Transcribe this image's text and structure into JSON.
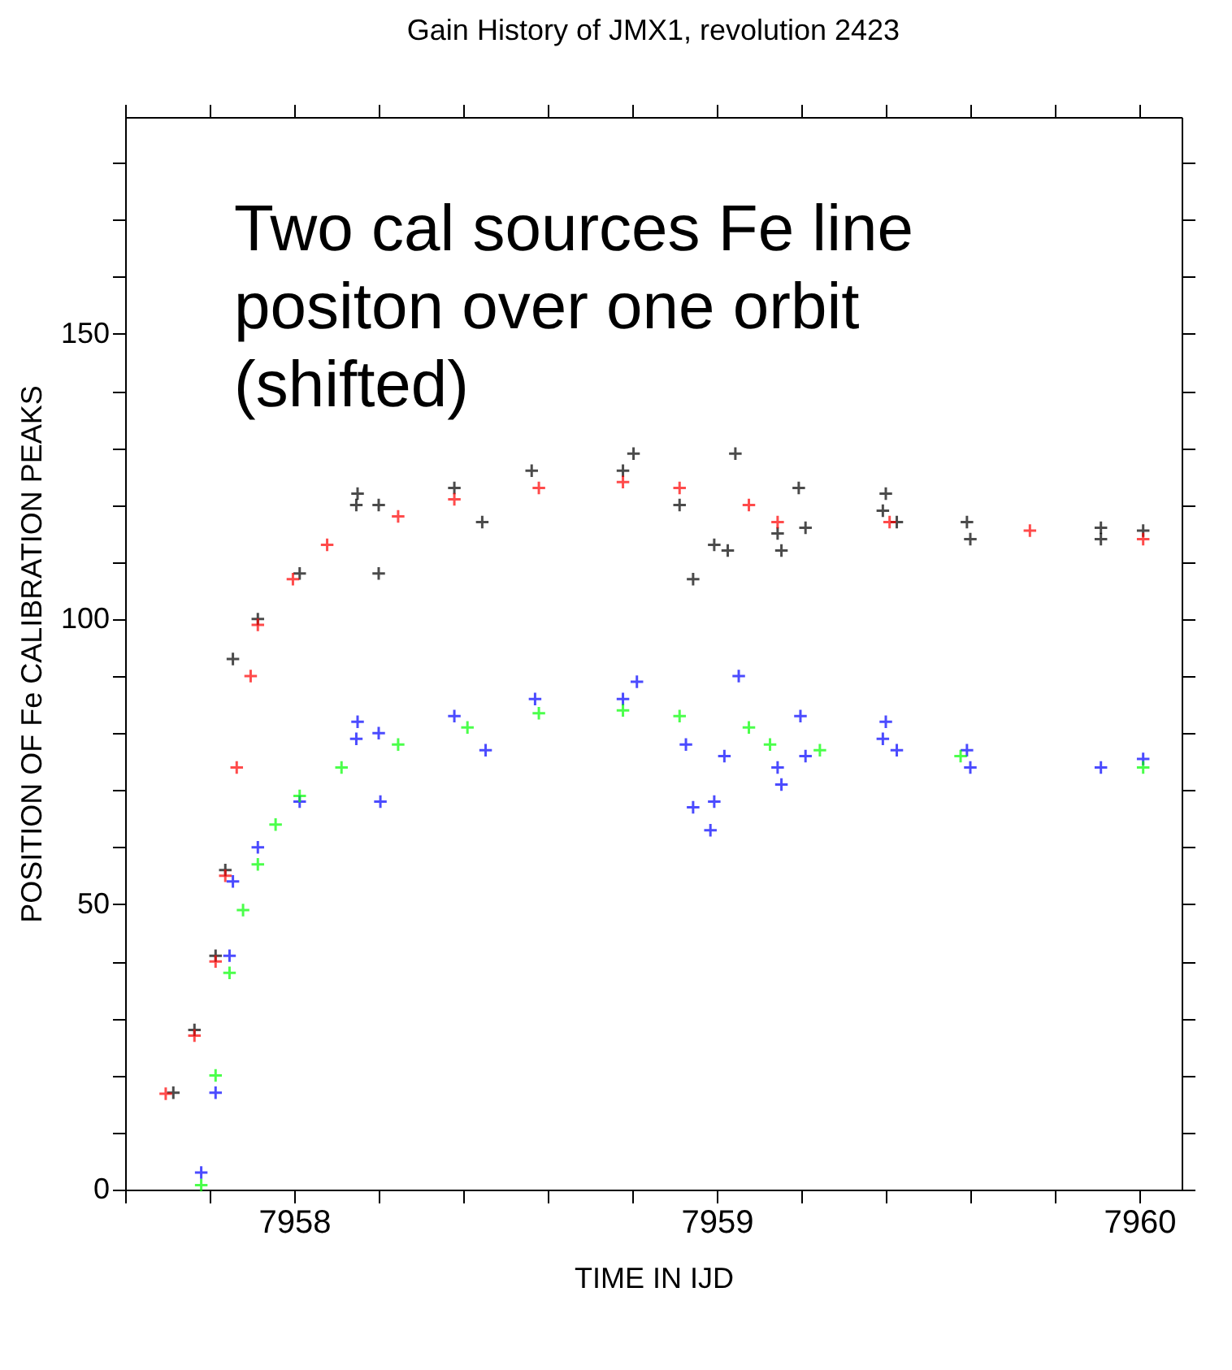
{
  "chart_data": {
    "type": "scatter",
    "title": "Gain History of JMX1, revolution 2423",
    "xlabel": "TIME IN IJD",
    "ylabel": "POSITION OF Fe CALIBRATION PEAKS",
    "annotations": [
      "Two cal sources Fe line positon over one orbit (shifted)"
    ],
    "xlim": [
      7957.6,
      7960.1
    ],
    "xticks": [
      {
        "value": 7957.6,
        "label": null
      },
      {
        "value": 7957.8,
        "label": null
      },
      7958,
      {
        "value": 7958.2,
        "label": null
      },
      {
        "value": 7958.4,
        "label": null
      },
      {
        "value": 7958.6,
        "label": null
      },
      {
        "value": 7958.8,
        "label": null
      },
      7959,
      {
        "value": 7959.2,
        "label": null
      },
      {
        "value": 7959.4,
        "label": null
      },
      {
        "value": 7959.6,
        "label": null
      },
      {
        "value": 7959.8,
        "label": null
      },
      7960
    ],
    "ylim": [
      0,
      188
    ],
    "yticks": [
      0,
      {
        "value": 10,
        "label": null
      },
      {
        "value": 20,
        "label": null
      },
      {
        "value": 30,
        "label": null
      },
      {
        "value": 40,
        "label": null
      },
      50,
      {
        "value": 60,
        "label": null
      },
      {
        "value": 70,
        "label": null
      },
      {
        "value": 80,
        "label": null
      },
      {
        "value": 90,
        "label": null
      },
      100,
      {
        "value": 110,
        "label": null
      },
      {
        "value": 120,
        "label": null
      },
      {
        "value": 130,
        "label": null
      },
      {
        "value": 140,
        "label": null
      },
      150,
      {
        "value": 160,
        "label": null
      },
      {
        "value": 170,
        "label": null
      },
      {
        "value": 180,
        "label": null
      }
    ],
    "grid": false,
    "marker": "cross",
    "series": [
      {
        "color": "#000000",
        "x": [
          7957.714,
          7957.764,
          7957.814,
          7957.837,
          7957.855,
          7957.914,
          7958.013,
          7958.147,
          7958.15,
          7958.2,
          7958.2,
          7958.379,
          7958.445,
          7958.562,
          7958.778,
          7958.803,
          7958.912,
          7958.944,
          7958.994,
          7959.026,
          7959.044,
          7959.144,
          7959.153,
          7959.194,
          7959.21,
          7959.393,
          7959.4,
          7959.426,
          7959.592,
          7959.6,
          7959.909,
          7959.909,
          7960.009
        ],
        "values": [
          17,
          28,
          41,
          56,
          93,
          100,
          108,
          120,
          122,
          120,
          108,
          123,
          117,
          126,
          126,
          129,
          120,
          107,
          113,
          112,
          129,
          115,
          112,
          123,
          116,
          119,
          122,
          117,
          117,
          114,
          114,
          116,
          115.5
        ]
      },
      {
        "color": "#ff0000",
        "x": [
          7957.696,
          7957.764,
          7957.814,
          7957.837,
          7957.864,
          7957.897,
          7957.914,
          7957.997,
          7958.078,
          7958.246,
          7958.379,
          7958.579,
          7958.778,
          7958.912,
          7959.076,
          7959.144,
          7959.409,
          7959.741,
          7960.009
        ],
        "values": [
          16.8,
          27,
          40,
          55,
          74,
          90,
          99,
          107,
          113,
          118,
          121,
          123,
          124,
          123,
          120,
          117,
          117,
          115.5,
          114
        ]
      },
      {
        "color": "#0000ff",
        "x": [
          7957.78,
          7957.814,
          7957.847,
          7957.855,
          7957.914,
          7958.013,
          7958.147,
          7958.15,
          7958.2,
          7958.204,
          7958.379,
          7958.453,
          7958.57,
          7958.778,
          7958.811,
          7958.927,
          7958.944,
          7958.985,
          7958.994,
          7959.018,
          7959.052,
          7959.144,
          7959.153,
          7959.198,
          7959.21,
          7959.393,
          7959.4,
          7959.426,
          7959.592,
          7959.6,
          7959.909,
          7960.009
        ],
        "values": [
          3,
          17,
          41,
          54,
          60,
          68,
          79,
          82,
          80,
          68,
          83,
          77,
          86,
          86,
          89,
          78,
          67,
          63,
          68,
          76,
          90,
          74,
          71,
          83,
          76,
          79,
          82,
          77,
          77,
          74,
          74,
          75.5
        ]
      },
      {
        "color": "#00ff00",
        "x": [
          7957.78,
          7957.814,
          7957.847,
          7957.879,
          7957.914,
          7957.956,
          7958.013,
          7958.112,
          7958.246,
          7958.41,
          7958.579,
          7958.778,
          7958.912,
          7959.076,
          7959.126,
          7959.244,
          7959.577,
          7960.009
        ],
        "values": [
          0.8,
          20,
          38,
          49,
          57,
          64,
          69,
          74,
          78,
          81,
          83.5,
          84,
          83,
          81,
          78,
          77,
          76,
          74
        ]
      }
    ]
  }
}
